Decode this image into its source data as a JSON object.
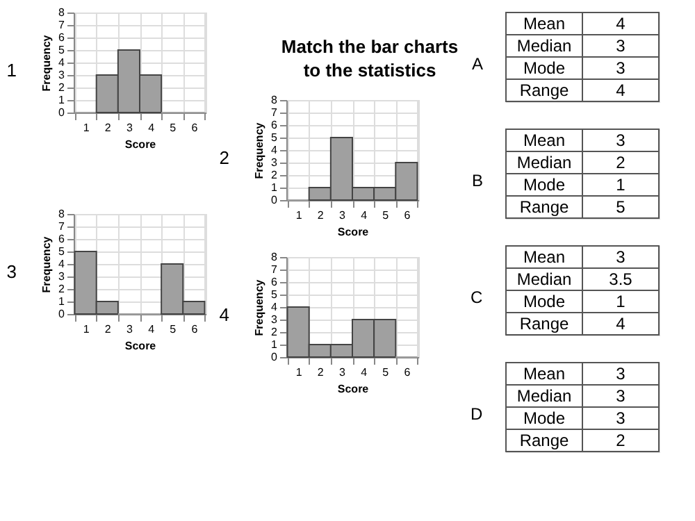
{
  "chart_data": [
    {
      "type": "other",
      "title": "Match the bar charts to the statistics"
    },
    {
      "type": "bar",
      "title": "1",
      "xlabel": "Score",
      "ylabel": "Frequency",
      "categories": [
        "1",
        "2",
        "3",
        "4",
        "5",
        "6"
      ],
      "values": [
        0,
        3,
        5,
        3,
        0,
        0
      ],
      "color": "#a0a0a0",
      "ylim": [
        0,
        8
      ],
      "yticks": [
        0,
        1,
        2,
        3,
        4,
        5,
        6,
        7,
        8
      ],
      "grid": true
    },
    {
      "type": "bar",
      "title": "2",
      "xlabel": "Score",
      "ylabel": "Frequency",
      "categories": [
        "1",
        "2",
        "3",
        "4",
        "5",
        "6"
      ],
      "values": [
        0,
        1,
        5,
        1,
        1,
        3
      ],
      "color": "#a0a0a0",
      "ylim": [
        0,
        8
      ],
      "yticks": [
        0,
        1,
        2,
        3,
        4,
        5,
        6,
        7,
        8
      ],
      "grid": true
    },
    {
      "type": "bar",
      "title": "3",
      "xlabel": "Score",
      "ylabel": "Frequency",
      "categories": [
        "1",
        "2",
        "3",
        "4",
        "5",
        "6"
      ],
      "values": [
        5,
        1,
        0,
        0,
        4,
        1
      ],
      "color": "#a0a0a0",
      "ylim": [
        0,
        8
      ],
      "yticks": [
        0,
        1,
        2,
        3,
        4,
        5,
        6,
        7,
        8
      ],
      "grid": true
    },
    {
      "type": "bar",
      "title": "4",
      "xlabel": "Score",
      "ylabel": "Frequency",
      "categories": [
        "1",
        "2",
        "3",
        "4",
        "5",
        "6"
      ],
      "values": [
        4,
        1,
        1,
        3,
        3,
        0
      ],
      "color": "#a0a0a0",
      "ylim": [
        0,
        8
      ],
      "yticks": [
        0,
        1,
        2,
        3,
        4,
        5,
        6,
        7,
        8
      ],
      "grid": true
    },
    {
      "type": "other",
      "title": "A",
      "categories": [
        "Mean",
        "Median",
        "Mode",
        "Range"
      ],
      "values": [
        4,
        3,
        3,
        4
      ],
      "data_labels": true
    },
    {
      "type": "other",
      "title": "B",
      "categories": [
        "Mean",
        "Median",
        "Mode",
        "Range"
      ],
      "values": [
        3,
        2,
        1,
        5
      ],
      "data_labels": true
    },
    {
      "type": "other",
      "title": "C",
      "categories": [
        "Mean",
        "Median",
        "Mode",
        "Range"
      ],
      "values": [
        3,
        3.5,
        1,
        4
      ],
      "data_labels": true
    },
    {
      "type": "other",
      "title": "D",
      "categories": [
        "Mean",
        "Median",
        "Mode",
        "Range"
      ],
      "values": [
        3,
        3,
        3,
        2
      ],
      "data_labels": true
    }
  ]
}
